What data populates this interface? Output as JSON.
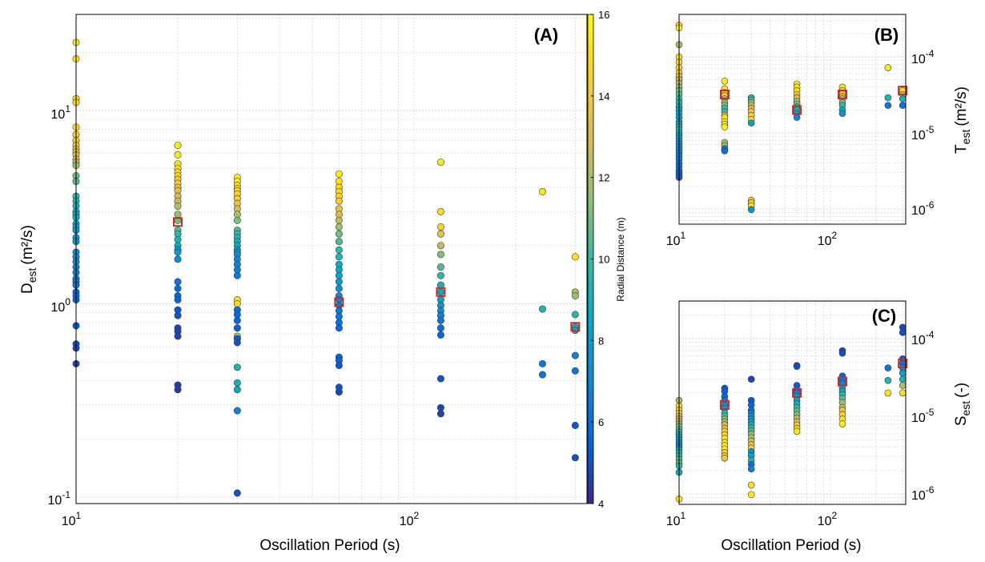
{
  "chart_data": [
    {
      "panel": "(A)",
      "type": "scatter",
      "xlabel": "Oscillation Period (s)",
      "ylabel": "D",
      "ylabel_sub": "est",
      "ylabel_unit": "(m²/s)",
      "x_scale": "log",
      "y_scale": "log",
      "xlim": [
        10,
        300
      ],
      "ylim": [
        0.09,
        31
      ],
      "grid": true,
      "x_ticks": [
        "10",
        "10"
      ],
      "x_tick_labels": [
        {
          "base": "10",
          "exp": "1"
        },
        {
          "base": "10",
          "exp": "2"
        }
      ],
      "y_tick_labels": [
        {
          "base": "10",
          "exp": "-1"
        },
        {
          "base": "10",
          "exp": "0"
        },
        {
          "base": "10",
          "exp": "1"
        }
      ],
      "colorbar": {
        "label": "Radial Distance (m)",
        "range": [
          4,
          16
        ],
        "ticks": [
          "4",
          "6",
          "8",
          "10",
          "12",
          "14",
          "16"
        ],
        "colormap": "parula"
      },
      "series": [
        {
          "x": 10,
          "y": [
            22.5,
            18.5,
            11.5,
            11,
            8.2,
            7.5,
            7,
            6.6,
            6.3,
            6.1,
            5.9,
            5.6,
            5.4,
            5.2,
            4.6,
            4.3,
            3.6,
            3.4,
            3.2,
            3,
            2.9,
            2.8,
            2.6,
            2.5,
            2.4,
            2.2,
            2.1,
            1.85,
            1.75,
            1.65,
            1.55,
            1.45,
            1.35,
            1.3,
            1.25,
            1.15,
            1.1,
            1.05,
            0.77,
            0.62,
            0.59,
            0.49
          ],
          "r": [
            15.5,
            15.2,
            15,
            14.9,
            14.8,
            14.6,
            14.4,
            14.2,
            14,
            13.6,
            13.2,
            12.8,
            12.4,
            11.6,
            11,
            10.6,
            9.8,
            9.5,
            9.2,
            9,
            8.8,
            8.6,
            8.4,
            8.2,
            8,
            7.8,
            7.6,
            7.4,
            7.2,
            7,
            6.8,
            6.6,
            6.4,
            6.2,
            6,
            5.8,
            5.6,
            5.4,
            5.2,
            5,
            4.8,
            4.6
          ]
        },
        {
          "x": 20,
          "y": [
            6.6,
            5.9,
            5.3,
            5,
            4.8,
            4.6,
            4.4,
            4.2,
            4,
            3.85,
            3.6,
            3.4,
            3.2,
            2.9,
            2.7,
            2.4,
            2.3,
            2.15,
            2,
            1.9,
            1.85,
            1.7,
            1.3,
            1.2,
            1.1,
            1.05,
            0.93,
            0.87,
            0.75,
            0.72,
            0.68,
            0.38,
            0.36
          ],
          "r": [
            15.5,
            15.3,
            15.1,
            15,
            14.8,
            14.6,
            14.4,
            14.2,
            13.8,
            13.4,
            13,
            12.6,
            12.2,
            11.6,
            11,
            10.4,
            9.8,
            9.2,
            8.6,
            8.2,
            7.8,
            7.4,
            6.2,
            5.8,
            5.6,
            5.4,
            5.2,
            5,
            4.8,
            4.7,
            4.6,
            4.5,
            4.4
          ]
        },
        {
          "x": 30,
          "y": [
            4.5,
            4.3,
            4.1,
            3.95,
            3.85,
            3.7,
            3.5,
            3.3,
            3.1,
            2.9,
            2.7,
            2.4,
            2.3,
            2.2,
            2.1,
            2.0,
            1.9,
            1.85,
            1.8,
            1.7,
            1.6,
            1.5,
            1.4,
            1.05,
            1.0,
            0.93,
            0.88,
            0.82,
            0.75,
            0.68,
            0.66,
            0.63,
            0.47,
            0.39,
            0.36,
            0.28,
            0.105
          ],
          "r": [
            15.6,
            15.4,
            15.2,
            15,
            14.8,
            14.6,
            14.2,
            13.6,
            12.8,
            12,
            11.2,
            10.4,
            9.8,
            9.4,
            9,
            8.6,
            8.2,
            7.8,
            7.4,
            7,
            6.8,
            6.6,
            6.4,
            15,
            14.8,
            6,
            5.8,
            5.6,
            5.4,
            12,
            5.2,
            5,
            9.4,
            9,
            8.6,
            6.8,
            5
          ]
        },
        {
          "x": 60,
          "y": [
            4.7,
            4.3,
            4.0,
            3.8,
            3.6,
            3.4,
            3.1,
            2.9,
            2.7,
            2.5,
            2.3,
            2.1,
            1.9,
            1.75,
            1.6,
            1.5,
            1.4,
            1.3,
            1.2,
            1.1,
            1.05,
            0.98,
            0.92,
            0.86,
            0.8,
            0.75,
            0.53,
            0.51,
            0.48,
            0.37,
            0.35
          ],
          "r": [
            15.5,
            15.2,
            15,
            14.8,
            14.6,
            14.2,
            13.6,
            13,
            12.4,
            11.8,
            11,
            10.4,
            9.8,
            9.4,
            9,
            8.6,
            8.2,
            7.8,
            7.4,
            7,
            6.8,
            6.6,
            6.4,
            6.2,
            6,
            5.8,
            5.6,
            5.4,
            5.2,
            5,
            4.8
          ]
        },
        {
          "x": 120,
          "y": [
            5.4,
            3.0,
            2.5,
            2.3,
            2.0,
            1.8,
            1.55,
            1.4,
            1.25,
            1.15,
            1.05,
            0.98,
            0.92,
            0.87,
            0.82,
            0.75,
            0.69,
            0.41,
            0.29,
            0.27
          ],
          "r": [
            15.5,
            15,
            14.6,
            13.6,
            12.4,
            11.2,
            10.4,
            9.8,
            9.2,
            8.6,
            8,
            7.6,
            7.2,
            6.8,
            6.4,
            6,
            5.6,
            5,
            4.8,
            4.6
          ]
        },
        {
          "x": 240,
          "y": [
            3.8,
            0.94,
            0.49,
            0.43
          ],
          "r": [
            15.4,
            9.4,
            6.4,
            6.2
          ]
        },
        {
          "x": 300,
          "y": [
            1.75,
            1.15,
            1.1,
            0.88,
            0.76,
            0.73,
            0.54,
            0.45,
            0.235,
            0.16
          ],
          "r": [
            15.2,
            12.2,
            11.6,
            9.6,
            8.8,
            8.2,
            6.8,
            6.4,
            5.2,
            5.0
          ]
        }
      ],
      "median_markers": [
        {
          "x": 20,
          "y": 2.65
        },
        {
          "x": 60,
          "y": 1.02
        },
        {
          "x": 120,
          "y": 1.15
        },
        {
          "x": 300,
          "y": 0.76
        }
      ]
    },
    {
      "panel": "(B)",
      "type": "scatter",
      "xlabel": "",
      "ylabel": "T",
      "ylabel_sub": "est",
      "ylabel_unit": "(m²/s)",
      "x_scale": "log",
      "y_scale": "log",
      "xlim": [
        10,
        300
      ],
      "ylim": [
        8e-07,
        0.00033
      ],
      "grid": true,
      "x_tick_labels": [
        {
          "base": "10",
          "exp": "1"
        },
        {
          "base": "10",
          "exp": "2"
        }
      ],
      "y_tick_labels": [
        {
          "base": "10",
          "exp": "-6"
        },
        {
          "base": "10",
          "exp": "-5"
        },
        {
          "base": "10",
          "exp": "-4"
        }
      ],
      "series": [
        {
          "x": 10,
          "y": [
            0.00026,
            0.00024,
            0.000145,
            0.0001,
            8.5e-05,
            7.2e-05,
            6.2e-05,
            5.5e-05,
            5e-05,
            4.5e-05,
            4e-05,
            3.6e-05,
            3.2e-05,
            2.8e-05,
            2.5e-05,
            2.2e-05,
            2e-05,
            1.8e-05,
            1.6e-05,
            1.4e-05,
            1.3e-05,
            1.2e-05,
            1.1e-05,
            1e-05,
            9.2e-06,
            8.5e-06,
            7.8e-06,
            7.2e-06,
            6.6e-06,
            6e-06,
            5.5e-06,
            5e-06,
            4.5e-06,
            4e-06,
            3.6e-06,
            3.2e-06,
            3e-06,
            2.8e-06,
            2.6e-06
          ],
          "r": [
            15.6,
            15.4,
            12,
            15,
            14.8,
            14.6,
            14.2,
            13.8,
            13,
            12.4,
            11.6,
            11,
            10.4,
            9.8,
            9.4,
            9,
            8.6,
            8.4,
            8.2,
            8,
            8.8,
            9.2,
            9.6,
            9,
            8.6,
            8.2,
            7.8,
            7.4,
            7.2,
            7,
            6.8,
            6.6,
            6.4,
            6.2,
            6,
            5.8,
            5.6,
            5.4,
            5.2
          ]
        },
        {
          "x": 20,
          "y": [
            4.8e-05,
            3.8e-05,
            3.4e-05,
            3.1e-05,
            2.8e-05,
            2.5e-05,
            2.3e-05,
            2.1e-05,
            1.9e-05,
            1.7e-05,
            1.6e-05,
            1.4e-05,
            1.3e-05,
            1.2e-05,
            7.5e-06,
            6.8e-06,
            6.2e-06,
            5.8e-06
          ],
          "r": [
            15.5,
            15.2,
            15,
            14.6,
            12.4,
            11.6,
            11,
            10.2,
            9.8,
            13.8,
            15,
            15.2,
            15.4,
            15.6,
            11.6,
            11.8,
            6.4,
            6.0
          ]
        },
        {
          "x": 30,
          "y": [
            2.9e-05,
            2.7e-05,
            2.5e-05,
            2.3e-05,
            2.1e-05,
            1.9e-05,
            1.7e-05,
            1.5e-05,
            1.35e-05,
            1.3e-06,
            1.2e-06,
            1.1e-06,
            9.8e-07
          ],
          "r": [
            9.4,
            10.4,
            11.6,
            12.4,
            13,
            13.8,
            14.4,
            15,
            8.2,
            13.8,
            14.6,
            15.2,
            7.6
          ]
        },
        {
          "x": 60,
          "y": [
            4.4e-05,
            4e-05,
            3.6e-05,
            3.2e-05,
            2.9e-05,
            2.6e-05,
            2.4e-05,
            2.2e-05,
            2e-05,
            1.8e-05,
            1.6e-05
          ],
          "r": [
            15.4,
            15.2,
            14.8,
            14,
            13,
            12,
            11,
            10,
            9,
            8,
            7
          ]
        },
        {
          "x": 120,
          "y": [
            4e-05,
            3.6e-05,
            3.3e-05,
            3e-05,
            2.8e-05,
            2.5e-05,
            2.3e-05,
            2e-05,
            1.8e-05
          ],
          "r": [
            15.4,
            15,
            14.4,
            13.4,
            12.4,
            11.2,
            10,
            8.6,
            7.4
          ]
        },
        {
          "x": 240,
          "y": [
            7.2e-05,
            2.9e-05,
            2.3e-05
          ],
          "r": [
            15.5,
            9.4,
            6.4
          ]
        },
        {
          "x": 300,
          "y": [
            3.6e-05,
            3.2e-05,
            2.8e-05,
            2.3e-05
          ],
          "r": [
            15.2,
            12.2,
            9,
            6.2
          ]
        }
      ],
      "median_markers": [
        {
          "x": 20,
          "y": 3.2e-05
        },
        {
          "x": 60,
          "y": 2e-05
        },
        {
          "x": 120,
          "y": 3.2e-05
        },
        {
          "x": 300,
          "y": 3.6e-05
        }
      ]
    },
    {
      "panel": "(C)",
      "type": "scatter",
      "xlabel": "Oscillation Period (s)",
      "ylabel": "S",
      "ylabel_sub": "est",
      "ylabel_unit": "(-)",
      "x_scale": "log",
      "y_scale": "log",
      "xlim": [
        10,
        300
      ],
      "ylim": [
        7e-07,
        0.00017
      ],
      "grid": true,
      "x_tick_labels": [
        {
          "base": "10",
          "exp": "1"
        },
        {
          "base": "10",
          "exp": "2"
        }
      ],
      "y_tick_labels": [
        {
          "base": "10",
          "exp": "-6"
        },
        {
          "base": "10",
          "exp": "-5"
        },
        {
          "base": "10",
          "exp": "-4"
        }
      ],
      "series": [
        {
          "x": 10,
          "y": [
            1.6e-05,
            1.35e-05,
            1.2e-05,
            1.1e-05,
            1e-05,
            9.3e-06,
            8.6e-06,
            8e-06,
            7.4e-06,
            6.8e-06,
            6.3e-06,
            5.8e-06,
            5.4e-06,
            5e-06,
            4.6e-06,
            4.3e-06,
            4e-06,
            3.7e-06,
            3.4e-06,
            3.1e-06,
            2.8e-06,
            2.5e-06,
            2.3e-06,
            1.9e-06,
            8.6e-07
          ],
          "r": [
            12,
            15,
            14.6,
            14.2,
            13.6,
            13,
            12.4,
            11.8,
            11.2,
            10.6,
            10,
            9.4,
            8.8,
            8.2,
            7.6,
            7.2,
            6.8,
            9,
            9.4,
            9.8,
            10.2,
            10.6,
            9.8,
            8.6,
            15.4
          ]
        },
        {
          "x": 20,
          "y": [
            2.3e-05,
            2.1e-05,
            1.8e-05,
            1.6e-05,
            1.4e-05,
            1.25e-05,
            1.1e-05,
            1e-05,
            9.2e-06,
            8.5e-06,
            7.8e-06,
            7e-06,
            6.4e-06,
            5.8e-06,
            5.2e-06,
            4.6e-06,
            4.2e-06,
            3.8e-06,
            3.4e-06,
            3.1e-06,
            2.9e-06
          ],
          "r": [
            5.2,
            5.4,
            5.8,
            6.4,
            7.4,
            8.4,
            9.4,
            10.4,
            11.2,
            12,
            12.8,
            13.6,
            14.2,
            14.8,
            15.2,
            15.4,
            15.6,
            15.2,
            14.8,
            14.4,
            14
          ]
        },
        {
          "x": 30,
          "y": [
            3e-05,
            1.6e-05,
            1.4e-05,
            1.2e-05,
            1.1e-05,
            1e-05,
            9.2e-06,
            8.5e-06,
            7.8e-06,
            7.1e-06,
            6.5e-06,
            5.9e-06,
            5.3e-06,
            4.8e-06,
            4.3e-06,
            3.9e-06,
            3.5e-06,
            3.1e-06,
            2.7e-06,
            2.4e-06,
            2.1e-06,
            1.3e-06,
            9.8e-07
          ],
          "r": [
            4.8,
            5.2,
            5.6,
            6,
            6.6,
            7.2,
            7.8,
            8.4,
            9,
            9.6,
            10.4,
            11.2,
            12,
            12.8,
            13.6,
            14.4,
            7.6,
            8.2,
            9.4,
            6.2,
            6.6,
            15,
            15.4
          ]
        },
        {
          "x": 60,
          "y": [
            4.5e-05,
            4.4e-05,
            2.5e-05,
            2.2e-05,
            2e-05,
            1.8e-05,
            1.6e-05,
            1.45e-05,
            1.3e-05,
            1.17e-05,
            1.05e-05,
            9.5e-06,
            8.5e-06,
            7.7e-06,
            7e-06,
            6.4e-06
          ],
          "r": [
            4.8,
            4.9,
            5.4,
            5.8,
            6.6,
            7.4,
            8.2,
            9,
            9.8,
            10.6,
            11.4,
            12.2,
            13,
            13.8,
            14.6,
            15.4
          ]
        },
        {
          "x": 120,
          "y": [
            7e-05,
            6.5e-05,
            3.3e-05,
            2.9e-05,
            2.6e-05,
            2.3e-05,
            2.1e-05,
            1.9e-05,
            1.7e-05,
            1.5e-05,
            1.3e-05,
            1.2e-05,
            1.05e-05,
            9.2e-06,
            8e-06
          ],
          "r": [
            4.8,
            5,
            5.6,
            6.2,
            7,
            7.8,
            8.6,
            9.6,
            10.6,
            11.6,
            12.6,
            13.6,
            14.4,
            15,
            15.6
          ]
        },
        {
          "x": 240,
          "y": [
            4.2e-05,
            2.9e-05,
            2e-05
          ],
          "r": [
            6.2,
            9.4,
            15.4
          ]
        },
        {
          "x": 300,
          "y": [
            0.00014,
            0.00012,
            5.5e-05,
            4.8e-05,
            4.2e-05,
            3.6e-05,
            3e-05,
            2.5e-05,
            2e-05
          ],
          "r": [
            4.8,
            5,
            5.4,
            6,
            7,
            8.2,
            9.4,
            12.2,
            15.2
          ]
        }
      ],
      "median_markers": [
        {
          "x": 20,
          "y": 1.4e-05
        },
        {
          "x": 60,
          "y": 2e-05
        },
        {
          "x": 120,
          "y": 2.8e-05
        },
        {
          "x": 300,
          "y": 4.8e-05
        }
      ]
    }
  ],
  "colors": {
    "median_marker": "#c0302b",
    "grid": "#c8c8c8",
    "axis": "#000000"
  }
}
